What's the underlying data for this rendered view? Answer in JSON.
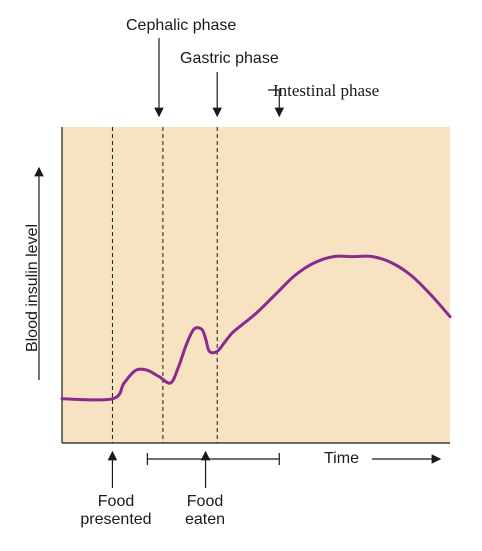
{
  "chart_data": {
    "type": "line",
    "ylabel": "Blood insulin level",
    "xlabel": "Time",
    "grid": false,
    "colors": {
      "background": "#f7e3c2",
      "curve": "#8b2a8e",
      "axis": "#1a1a1a"
    },
    "phases": [
      {
        "label": "Cephalic phase",
        "x": 25
      },
      {
        "label": "Gastric phase",
        "x": 40
      },
      {
        "label": "Intestinal phase",
        "x": 56
      }
    ],
    "dividers": [
      13,
      26,
      40
    ],
    "events": [
      {
        "label_line1": "Food",
        "label_line2": "presented",
        "x": 13
      },
      {
        "label_line1": "Food",
        "label_line2": "eaten",
        "x": 37
      }
    ],
    "eating_interval": [
      22,
      56
    ],
    "xlim": [
      0,
      100
    ],
    "ylim": [
      0,
      100
    ],
    "series": [
      {
        "x": [
          0,
          13,
          16,
          19,
          22,
          25,
          28,
          30,
          32,
          34,
          36,
          37,
          38,
          40,
          42,
          44,
          47,
          50,
          55,
          60,
          65,
          70,
          75,
          80,
          85,
          90,
          95,
          100
        ],
        "values": [
          14,
          14,
          19,
          23,
          23,
          21,
          19,
          24,
          31,
          36,
          36,
          33,
          29,
          29,
          32,
          35,
          38,
          41,
          47,
          53,
          57,
          59,
          59,
          59,
          57,
          53,
          47,
          40
        ]
      }
    ]
  }
}
